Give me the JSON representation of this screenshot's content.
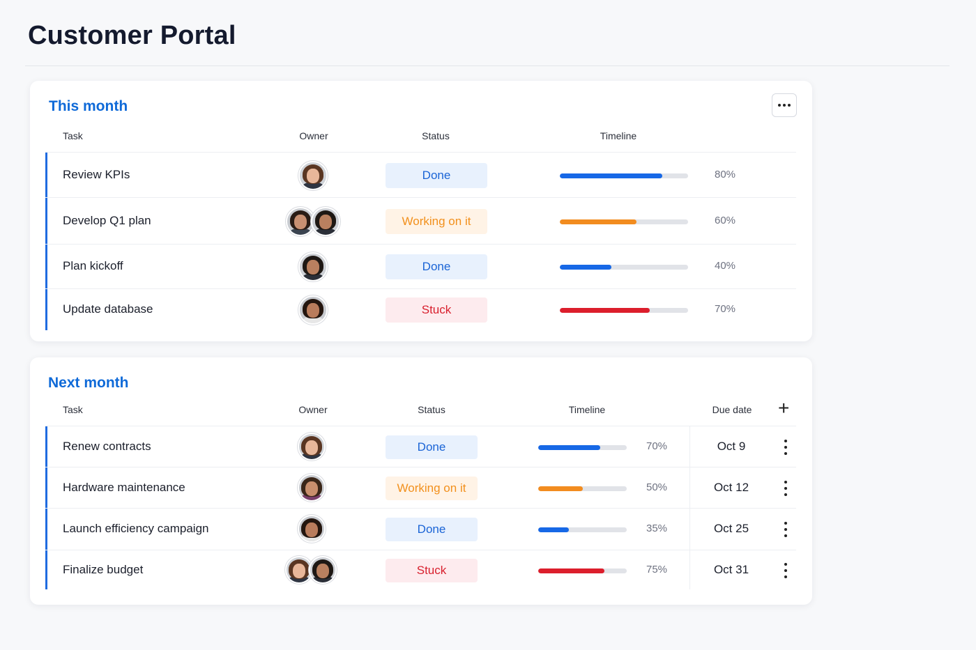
{
  "page": {
    "title": "Customer Portal"
  },
  "colors": {
    "accent": "#0f6ad8",
    "done": "#1a64d6",
    "working": "#f2901c",
    "stuck": "#d81f2d",
    "row_marker": "#1f6be0"
  },
  "this_month": {
    "title": "This month",
    "menu_icon": "more-horizontal-icon",
    "columns": {
      "task": "Task",
      "owner": "Owner",
      "status": "Status",
      "timeline": "Timeline"
    },
    "rows": [
      {
        "task": "Review KPIs",
        "owners": [
          "woman-brown-hair"
        ],
        "status": "Done",
        "status_kind": "done",
        "progress": 80,
        "progress_label": "80%"
      },
      {
        "task": "Develop Q1 plan",
        "owners": [
          "man-dark-hair",
          "man-bearded"
        ],
        "status": "Working on it",
        "status_kind": "working",
        "progress": 60,
        "progress_label": "60%"
      },
      {
        "task": "Plan kickoff",
        "owners": [
          "man-bearded"
        ],
        "status": "Done",
        "status_kind": "done",
        "progress": 40,
        "progress_label": "40%"
      },
      {
        "task": "Update database",
        "owners": [
          "woman-dark-curly-hair"
        ],
        "status": "Stuck",
        "status_kind": "stuck",
        "progress": 70,
        "progress_label": "70%"
      }
    ]
  },
  "next_month": {
    "title": "Next month",
    "add_icon": "plus-icon",
    "add_symbol": "+",
    "columns": {
      "task": "Task",
      "owner": "Owner",
      "status": "Status",
      "timeline": "Timeline",
      "due": "Due date"
    },
    "rows": [
      {
        "task": "Renew contracts",
        "owners": [
          "woman-brown-hair"
        ],
        "status": "Done",
        "status_kind": "done",
        "progress": 70,
        "progress_label": "70%",
        "due": "Oct 9"
      },
      {
        "task": "Hardware maintenance",
        "owners": [
          "man-bearded-purple"
        ],
        "status": "Working on it",
        "status_kind": "working",
        "progress": 50,
        "progress_label": "50%",
        "due": "Oct 12"
      },
      {
        "task": "Launch efficiency campaign",
        "owners": [
          "woman-dark-curly-hair"
        ],
        "status": "Done",
        "status_kind": "done",
        "progress": 35,
        "progress_label": "35%",
        "due": "Oct 25"
      },
      {
        "task": "Finalize budget",
        "owners": [
          "woman-brown-hair",
          "man-bearded"
        ],
        "status": "Stuck",
        "status_kind": "stuck",
        "progress": 75,
        "progress_label": "75%",
        "due": "Oct 31"
      }
    ]
  }
}
